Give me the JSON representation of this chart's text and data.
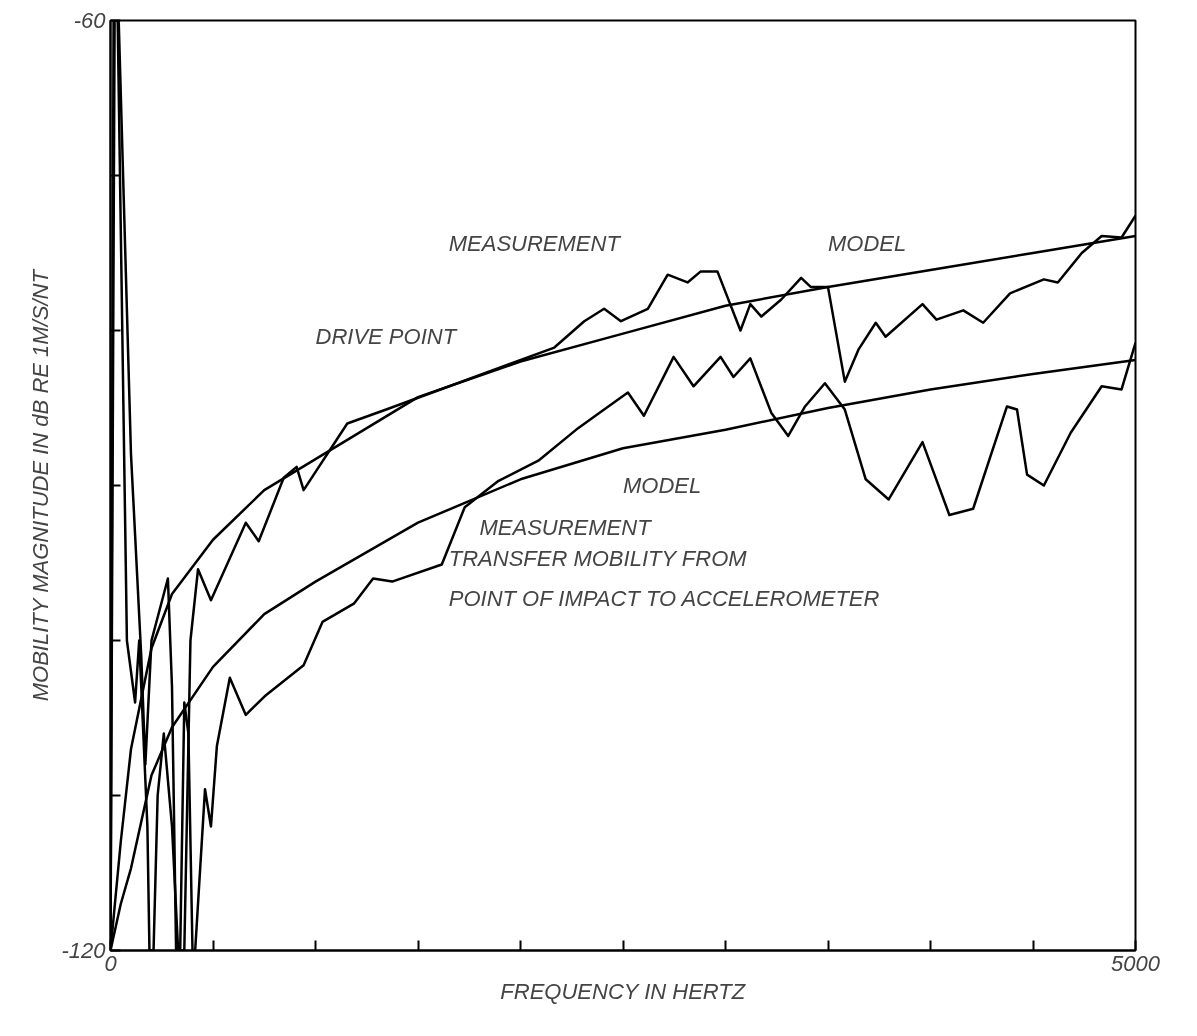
{
  "chart_data": {
    "type": "line",
    "xlabel": "FREQUENCY IN HERTZ",
    "ylabel": "MOBILITY MAGNITUDE IN dB RE 1M/S/NT",
    "xlim": [
      0,
      5000
    ],
    "ylim": [
      -120,
      -60
    ],
    "xticks": [
      {
        "value": 0,
        "label": "0"
      },
      {
        "value": 500,
        "label": null
      },
      {
        "value": 1000,
        "label": null
      },
      {
        "value": 1500,
        "label": null
      },
      {
        "value": 2000,
        "label": null
      },
      {
        "value": 2500,
        "label": null
      },
      {
        "value": 3000,
        "label": null
      },
      {
        "value": 3500,
        "label": null
      },
      {
        "value": 4000,
        "label": null
      },
      {
        "value": 4500,
        "label": null
      },
      {
        "value": 5000,
        "label": "5000"
      }
    ],
    "yticks": [
      -120,
      {
        "value": -110,
        "label": null
      },
      {
        "value": -100,
        "label": null
      },
      {
        "value": -90,
        "label": null
      },
      {
        "value": -80,
        "label": null
      },
      {
        "value": -70,
        "label": null
      },
      -60
    ],
    "grid": false,
    "marker": "none",
    "line_style": "solid",
    "series": [
      {
        "color": "#000000",
        "x": [
          0,
          50,
          100,
          200,
          300,
          500,
          750,
          1000,
          1500,
          2000,
          2500,
          3000,
          3500,
          4000,
          4500,
          5000
        ],
        "values": [
          -120,
          -113,
          -107,
          -100.5,
          -97,
          -93.5,
          -90.3,
          -88.3,
          -84.3,
          -82,
          -80.2,
          -78.4,
          -77.2,
          -76.1,
          -75,
          -73.9
        ]
      },
      {
        "color": "#000000",
        "x": [
          0,
          50,
          100,
          200,
          300,
          500,
          750,
          1000,
          1500,
          2000,
          2500,
          3000,
          3500,
          4000,
          4500,
          5000
        ],
        "values": [
          -120,
          -117,
          -114.7,
          -108.7,
          -105.6,
          -101.7,
          -98.3,
          -96.2,
          -92.4,
          -89.6,
          -87.6,
          -86.4,
          -85,
          -83.8,
          -82.8,
          -81.9
        ]
      },
      {
        "color": "#000000",
        "x": [
          0,
          15,
          35,
          80,
          100,
          120,
          140,
          160,
          180,
          190,
          210,
          230,
          260,
          300,
          330,
          360,
          390,
          427,
          490,
          660,
          723,
          845,
          908,
          942,
          1155,
          1345,
          2165,
          2311,
          2408,
          2490,
          2621,
          2718,
          2815,
          2878,
          2961,
          3073,
          3121,
          3175,
          3272,
          3369,
          3417,
          3500,
          3582,
          3650,
          3733,
          3781,
          3961,
          4029,
          4160,
          4257,
          4388,
          4553,
          4621,
          4738,
          4835,
          4932,
          5000
        ],
        "values": [
          -120,
          -60,
          -60,
          -100,
          -102,
          -104,
          -100,
          -106,
          -112,
          -120,
          -120,
          -110,
          -106,
          -112,
          -120,
          -120,
          -100,
          -95.4,
          -97.4,
          -92.4,
          -93.6,
          -89.5,
          -88.8,
          -90.3,
          -86,
          -85.1,
          -81.1,
          -79.4,
          -78.6,
          -79.4,
          -78.6,
          -76.4,
          -76.9,
          -76.2,
          -76.2,
          -80,
          -78.3,
          -79.1,
          -78,
          -76.6,
          -77.2,
          -77.2,
          -83.3,
          -81.2,
          -79.5,
          -80.4,
          -78.3,
          -79.3,
          -78.7,
          -79.5,
          -77.6,
          -76.7,
          -76.9,
          -75,
          -73.9,
          -74,
          -72.6
        ]
      },
      {
        "color": "#000000",
        "x": [
          0,
          20,
          40,
          100,
          150,
          170,
          200,
          240,
          280,
          300,
          320,
          340,
          360,
          380,
          400,
          413,
          461,
          490,
          519,
          582,
          660,
          752,
          942,
          1034,
          1189,
          1281,
          1374,
          1616,
          1728,
          1893,
          2087,
          2281,
          2408,
          2524,
          2602,
          2747,
          2844,
          2976,
          3039,
          3121,
          3223,
          3306,
          3388,
          3485,
          3582,
          3684,
          3796,
          3961,
          4092,
          4208,
          4373,
          4422,
          4471,
          4553,
          4684,
          4835,
          4932,
          5000
        ],
        "values": [
          -120,
          -60,
          -60,
          -88,
          -101,
          -108,
          -100,
          -98,
          -96,
          -103,
          -120,
          -120,
          -104,
          -106,
          -120,
          -120,
          -109.6,
          -112,
          -106.8,
          -102.4,
          -104.8,
          -103.6,
          -101.6,
          -98.8,
          -97.6,
          -96,
          -96.2,
          -95.1,
          -91.4,
          -89.7,
          -88.4,
          -86.3,
          -85.1,
          -84,
          -85.5,
          -81.7,
          -83.6,
          -81.7,
          -83,
          -81.8,
          -85.3,
          -86.8,
          -84.9,
          -83.4,
          -85.1,
          -89.6,
          -90.9,
          -87.2,
          -91.9,
          -91.5,
          -84.9,
          -85.1,
          -89.3,
          -90,
          -86.6,
          -83.6,
          -83.8,
          -80.8
        ]
      }
    ],
    "annotations": [
      "MEASUREMENT",
      "MODEL",
      "DRIVE POINT",
      "MODEL",
      "MEASUREMENT",
      "TRANSFER MOBILITY FROM POINT OF IMPACT TO ACCELEROMETER"
    ]
  }
}
